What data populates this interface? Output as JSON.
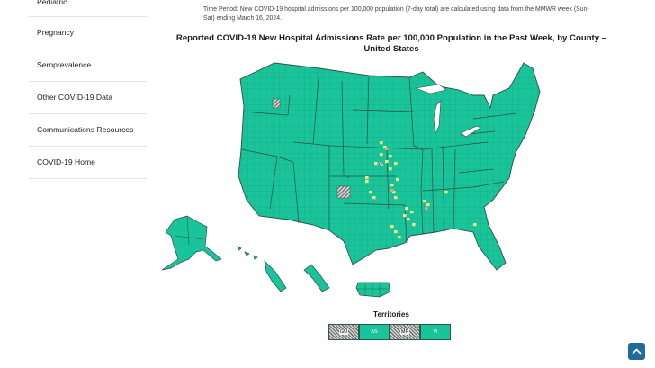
{
  "sidebar": {
    "items": [
      {
        "label": "Pediatric"
      },
      {
        "label": "Pregnancy"
      },
      {
        "label": "Seroprevalence"
      },
      {
        "label": "Other COVID-19 Data"
      },
      {
        "label": "Communications Resources"
      },
      {
        "label": "COVID-19 Home"
      }
    ]
  },
  "time_period": "Time Period: New COVID-19 hospital admissions per 100,000 population (7-day total) are calculated using data from the MMWR week (Sun-Sat) ending March 16, 2024.",
  "map_title": "Reported COVID-19 New Hospital Admissions Rate per 100,000 Population in the Past Week, by County – United States",
  "colors": {
    "low": "#19c49a",
    "medium": "#f3e37c",
    "high": "#f29a73",
    "no_data": "#9a9a9a",
    "border": "#2d4f44"
  },
  "territories": {
    "title": "Territories",
    "items": [
      {
        "code": "GU",
        "status": "no_data"
      },
      {
        "code": "AS",
        "status": "low"
      },
      {
        "code": "MP",
        "status": "no_data"
      },
      {
        "code": "VI",
        "status": "low"
      }
    ]
  },
  "scroll_top_icon": "chevron-up-icon"
}
